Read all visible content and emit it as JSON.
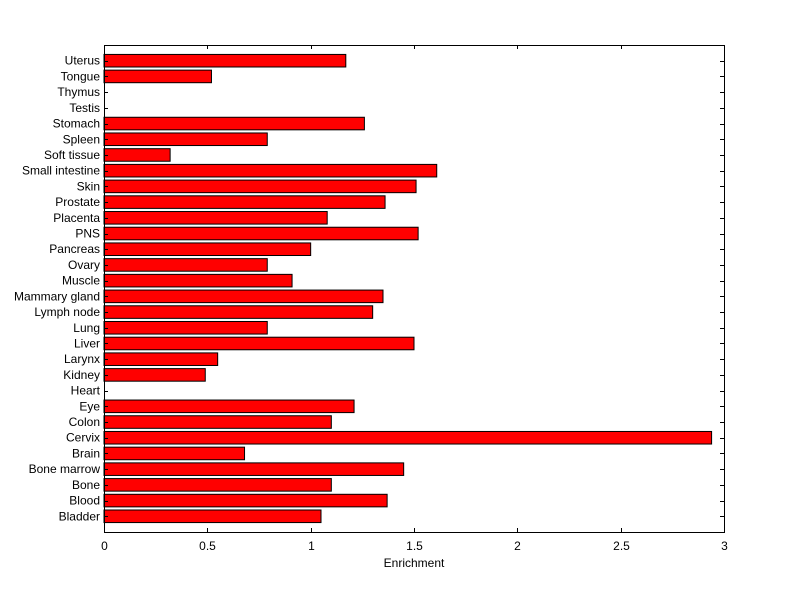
{
  "chart_data": {
    "type": "bar",
    "orientation": "horizontal",
    "xlabel": "Enrichment",
    "ylabel": "",
    "title": "",
    "xlim": [
      0,
      3
    ],
    "xticks": [
      "0",
      "0.5",
      "1",
      "1.5",
      "2",
      "2.5",
      "3"
    ],
    "categories": [
      "Bladder",
      "Blood",
      "Bone",
      "Bone marrow",
      "Brain",
      "Cervix",
      "Colon",
      "Eye",
      "Heart",
      "Kidney",
      "Larynx",
      "Liver",
      "Lung",
      "Lymph node",
      "Mammary gland",
      "Muscle",
      "Ovary",
      "Pancreas",
      "PNS",
      "Placenta",
      "Prostate",
      "Skin",
      "Small intestine",
      "Soft tissue",
      "Spleen",
      "Stomach",
      "Testis",
      "Thymus",
      "Tongue",
      "Uterus"
    ],
    "values": [
      1.05,
      1.37,
      1.1,
      1.45,
      0.68,
      2.94,
      1.1,
      1.21,
      0,
      0.49,
      0.55,
      1.5,
      0.79,
      1.3,
      1.35,
      0.91,
      0.79,
      1.0,
      1.52,
      1.08,
      1.36,
      1.51,
      1.61,
      0.32,
      0.79,
      1.26,
      0,
      0,
      0.52,
      1.17
    ],
    "bar_color": "#ff0000",
    "grid": false,
    "legend": "none"
  }
}
